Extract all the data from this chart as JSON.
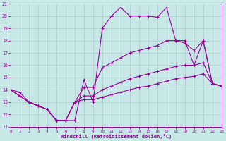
{
  "xlabel": "Windchill (Refroidissement éolien,°C)",
  "background_color": "#c8e8e8",
  "line_color": "#990099",
  "grid_color": "#aacccc",
  "xlim": [
    0,
    23
  ],
  "ylim": [
    11,
    21
  ],
  "xticks": [
    0,
    1,
    2,
    3,
    4,
    5,
    6,
    7,
    8,
    9,
    10,
    11,
    12,
    13,
    14,
    15,
    16,
    17,
    18,
    19,
    20,
    21,
    22,
    23
  ],
  "yticks": [
    11,
    12,
    13,
    14,
    15,
    16,
    17,
    18,
    19,
    20,
    21
  ],
  "s1_x": [
    0,
    1,
    2,
    3,
    4,
    5,
    6,
    7,
    8,
    9,
    10,
    11,
    12,
    13,
    14,
    15,
    16,
    17,
    18,
    19,
    20,
    21,
    22,
    23
  ],
  "s1_y": [
    14.0,
    13.8,
    13.0,
    12.7,
    12.4,
    11.5,
    11.5,
    11.5,
    14.8,
    13.0,
    19.0,
    20.0,
    20.7,
    20.0,
    20.0,
    20.0,
    19.9,
    20.7,
    18.0,
    18.0,
    16.0,
    18.0,
    14.5,
    14.3
  ],
  "s2_x": [
    0,
    1,
    2,
    3,
    4,
    5,
    6,
    7,
    8,
    9,
    10,
    11,
    12,
    13,
    14,
    15,
    16,
    17,
    18,
    19,
    20,
    21,
    22,
    23
  ],
  "s2_y": [
    14.0,
    13.5,
    13.0,
    12.7,
    12.4,
    11.5,
    11.5,
    13.0,
    14.2,
    14.2,
    15.8,
    16.2,
    16.6,
    17.0,
    17.2,
    17.4,
    17.6,
    18.0,
    18.0,
    17.8,
    17.2,
    18.0,
    14.5,
    14.3
  ],
  "s3_x": [
    0,
    1,
    2,
    3,
    4,
    5,
    6,
    7,
    8,
    9,
    10,
    11,
    12,
    13,
    14,
    15,
    16,
    17,
    18,
    19,
    20,
    21,
    22,
    23
  ],
  "s3_y": [
    14.0,
    13.5,
    13.0,
    12.7,
    12.4,
    11.5,
    11.5,
    13.0,
    13.5,
    13.5,
    14.0,
    14.3,
    14.6,
    14.9,
    15.1,
    15.3,
    15.5,
    15.7,
    15.9,
    16.0,
    16.0,
    16.2,
    14.5,
    14.3
  ],
  "s4_x": [
    0,
    1,
    2,
    3,
    4,
    5,
    6,
    7,
    8,
    9,
    10,
    11,
    12,
    13,
    14,
    15,
    16,
    17,
    18,
    19,
    20,
    21,
    22,
    23
  ],
  "s4_y": [
    14.0,
    13.5,
    13.0,
    12.7,
    12.4,
    11.5,
    11.5,
    13.0,
    13.2,
    13.2,
    13.4,
    13.6,
    13.8,
    14.0,
    14.2,
    14.3,
    14.5,
    14.7,
    14.9,
    15.0,
    15.1,
    15.3,
    14.5,
    14.3
  ]
}
